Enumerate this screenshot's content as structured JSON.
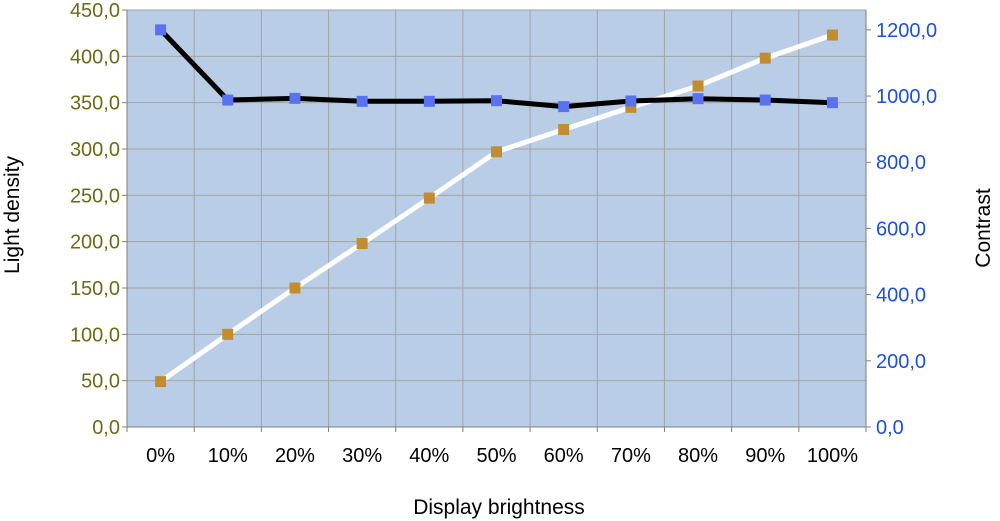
{
  "colors": {
    "plot_bg": "#b9cde6",
    "grid": "#a3a3a3",
    "axis": "#7f7f7f",
    "left_tick_text": "#6b6b16",
    "right_tick_text": "#1f4fd9",
    "light_density_line": "#ffffff",
    "light_density_marker": "#c28d2e",
    "contrast_line": "#000000",
    "contrast_marker": "#5a72f0"
  },
  "chart_data": {
    "type": "line",
    "title": "",
    "xlabel": "Display brightness",
    "ylabel": "Light density",
    "y2label": "Contrast",
    "categories": [
      "0%",
      "10%",
      "20%",
      "30%",
      "40%",
      "50%",
      "60%",
      "70%",
      "80%",
      "90%",
      "100%"
    ],
    "ylim": [
      0,
      450
    ],
    "y2lim": [
      0,
      1260
    ],
    "yticks": [
      "0,0",
      "50,0",
      "100,0",
      "150,0",
      "200,0",
      "250,0",
      "300,0",
      "350,0",
      "400,0",
      "450,0"
    ],
    "y2ticks": [
      "0,0",
      "200,0",
      "400,0",
      "600,0",
      "800,0",
      "1000,0",
      "1200,0"
    ],
    "grid": true,
    "legend": "none",
    "series": [
      {
        "axis": "left",
        "values": [
          49,
          100,
          150,
          198,
          247,
          297,
          321,
          345,
          368,
          398,
          423
        ]
      },
      {
        "axis": "right",
        "values": [
          1200,
          988,
          993,
          984,
          984,
          986,
          968,
          985,
          992,
          988,
          980
        ]
      }
    ]
  }
}
